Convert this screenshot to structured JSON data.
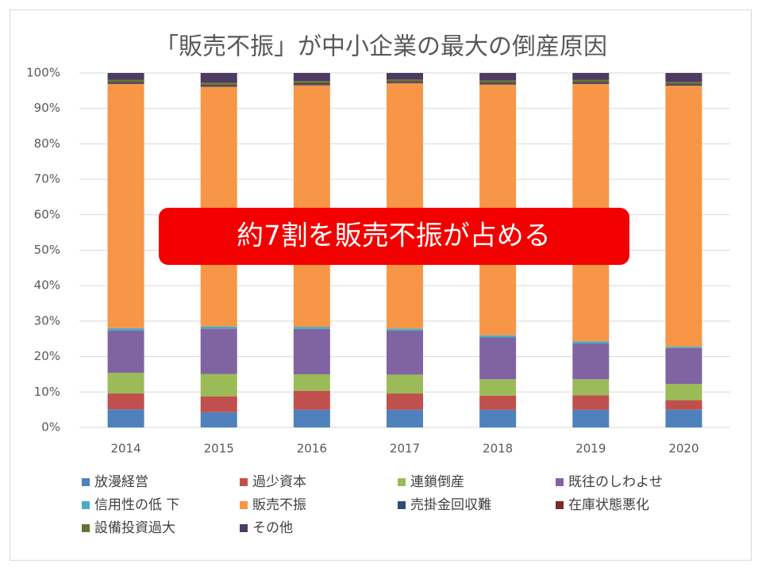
{
  "chart_data": {
    "type": "stacked_bar",
    "title": "「販売不振」が中小企業の最大の倒産原因",
    "annotation": "約7割を販売不振が占める",
    "categories": [
      "2014",
      "2015",
      "2016",
      "2017",
      "2018",
      "2019",
      "2020"
    ],
    "series": [
      {
        "name": "放漫経営",
        "color": "#4f81bd",
        "values": [
          5.1,
          4.3,
          5.0,
          5.0,
          5.0,
          5.0,
          5.0
        ]
      },
      {
        "name": "過少資本",
        "color": "#c0504d",
        "values": [
          4.5,
          4.5,
          5.3,
          4.6,
          4.0,
          4.1,
          2.7
        ]
      },
      {
        "name": "連鎖倒産",
        "color": "#9bbb59",
        "values": [
          5.8,
          6.3,
          4.7,
          5.3,
          4.6,
          4.5,
          4.6
        ]
      },
      {
        "name": "既往のしわよせ",
        "color": "#8064a2",
        "values": [
          11.9,
          12.8,
          12.8,
          12.4,
          11.8,
          10.1,
          10.1
        ]
      },
      {
        "name": "信用性の低 下",
        "color": "#4bacc6",
        "values": [
          0.7,
          0.6,
          0.6,
          0.6,
          0.6,
          0.6,
          0.4
        ]
      },
      {
        "name": "販売不振",
        "color": "#f79646",
        "values": [
          68.9,
          67.6,
          68.1,
          69.2,
          70.7,
          72.6,
          73.6
        ]
      },
      {
        "name": "売掛金回収難",
        "color": "#2c4d75",
        "values": [
          0.3,
          0.3,
          0.3,
          0.3,
          0.3,
          0.3,
          0.3
        ]
      },
      {
        "name": "在庫状態悪化",
        "color": "#772c2a",
        "values": [
          0.3,
          0.3,
          0.3,
          0.3,
          0.3,
          0.3,
          0.3
        ]
      },
      {
        "name": "設備投資過大",
        "color": "#5f7530",
        "values": [
          0.6,
          0.6,
          0.6,
          0.5,
          0.6,
          0.6,
          0.5
        ]
      },
      {
        "name": "その他",
        "color": "#4d3b62",
        "values": [
          1.9,
          2.7,
          2.3,
          1.8,
          2.1,
          1.9,
          2.5
        ]
      }
    ],
    "ylim": [
      0,
      100
    ],
    "yticks": [
      {
        "value": 0,
        "label": "0%"
      },
      {
        "value": 10,
        "label": "10%"
      },
      {
        "value": 20,
        "label": "20%"
      },
      {
        "value": 30,
        "label": "30%"
      },
      {
        "value": 40,
        "label": "40%"
      },
      {
        "value": 50,
        "label": "50%"
      },
      {
        "value": 60,
        "label": "60%"
      },
      {
        "value": 70,
        "label": "70%"
      },
      {
        "value": 80,
        "label": "80%"
      },
      {
        "value": 90,
        "label": "90%"
      },
      {
        "value": 100,
        "label": "100%"
      }
    ],
    "grid": true
  }
}
